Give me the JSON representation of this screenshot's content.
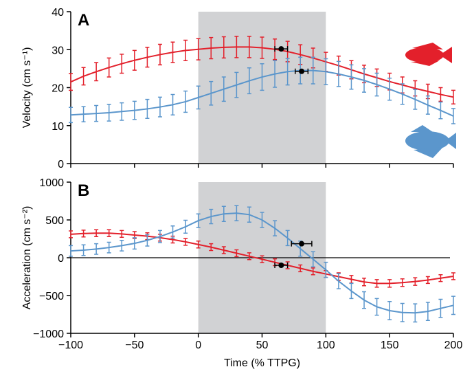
{
  "chart_data": [
    {
      "type": "line",
      "panel_label": "A",
      "ylabel": "Velocity (cm s⁻¹)",
      "x": [
        -100,
        -90,
        -80,
        -70,
        -60,
        -50,
        -40,
        -30,
        -20,
        -10,
        0,
        10,
        20,
        30,
        40,
        50,
        60,
        70,
        80,
        90,
        100,
        110,
        120,
        130,
        140,
        150,
        160,
        170,
        180,
        190,
        200
      ],
      "xlim": [
        -100,
        200
      ],
      "xticks": [
        -100,
        -50,
        0,
        50,
        100,
        150,
        200
      ],
      "ylim": [
        0,
        40
      ],
      "yticks": [
        0,
        10,
        20,
        30,
        40
      ],
      "shaded_region": [
        0,
        100
      ],
      "series": [
        {
          "color": "#e3202b",
          "values": [
            21.5,
            23,
            24.2,
            25.3,
            26.3,
            27.2,
            28,
            28.7,
            29.3,
            29.8,
            30.1,
            30.4,
            30.6,
            30.7,
            30.7,
            30.5,
            30.1,
            29.5,
            28.7,
            27.8,
            26.8,
            25.8,
            24.7,
            23.6,
            22.6,
            21.6,
            20.7,
            19.8,
            19,
            18.2,
            17.5
          ],
          "errors": [
            2.2,
            2.3,
            2.4,
            2.5,
            2.5,
            2.6,
            2.6,
            2.7,
            2.7,
            2.7,
            2.8,
            2.8,
            2.8,
            2.8,
            2.8,
            2.8,
            2.7,
            2.7,
            2.6,
            2.6,
            2.5,
            2.5,
            2.4,
            2.3,
            2.3,
            2.2,
            2.1,
            2,
            1.9,
            1.8,
            1.8
          ],
          "peak": {
            "x": 65,
            "y": 30.2,
            "x_error": 5
          }
        },
        {
          "color": "#5b96cc",
          "values": [
            12.8,
            13,
            13.2,
            13.4,
            13.7,
            14,
            14.4,
            14.9,
            15.5,
            16.3,
            17.4,
            18.5,
            19.6,
            20.7,
            21.8,
            22.8,
            23.6,
            24.2,
            24.5,
            24.5,
            24.2,
            23.6,
            22.8,
            21.9,
            20.8,
            19.6,
            18.3,
            16.9,
            15.4,
            14,
            12.5
          ],
          "errors": [
            2,
            2,
            2.1,
            2.2,
            2.3,
            2.4,
            2.5,
            2.6,
            2.7,
            2.8,
            3,
            3.1,
            3.2,
            3.3,
            3.4,
            3.5,
            3.5,
            3.5,
            3.5,
            3.5,
            3.4,
            3.3,
            3.2,
            3.1,
            3,
            2.9,
            2.7,
            2.6,
            2.4,
            2.2,
            2
          ],
          "peak": {
            "x": 81,
            "y": 24.3,
            "x_error": 5
          }
        }
      ]
    },
    {
      "type": "line",
      "panel_label": "B",
      "ylabel": "Acceleration (cm s⁻²)",
      "xlabel": "Time (% TTPG)",
      "x": [
        -100,
        -90,
        -80,
        -70,
        -60,
        -50,
        -40,
        -30,
        -20,
        -10,
        0,
        10,
        20,
        30,
        40,
        50,
        60,
        70,
        80,
        90,
        100,
        110,
        120,
        130,
        140,
        150,
        160,
        170,
        180,
        190,
        200
      ],
      "xlim": [
        -100,
        200
      ],
      "xticks": [
        {
          "value": -100,
          "label": "−100"
        },
        {
          "value": -50,
          "label": "−50"
        },
        0,
        50,
        100,
        150,
        200
      ],
      "ylim": [
        -1000,
        1000
      ],
      "yticks": [
        {
          "value": -1000,
          "label": "−1000"
        },
        {
          "value": -500,
          "label": "−500"
        },
        0,
        500,
        1000
      ],
      "shaded_region": [
        0,
        100
      ],
      "hline": 0,
      "series": [
        {
          "color": "#e3202b",
          "values": [
            310,
            320,
            325,
            325,
            315,
            300,
            285,
            265,
            240,
            210,
            175,
            140,
            100,
            60,
            20,
            -20,
            -60,
            -100,
            -140,
            -180,
            -215,
            -250,
            -285,
            -320,
            -340,
            -340,
            -330,
            -315,
            -295,
            -270,
            -245
          ],
          "errors": [
            45,
            45,
            45,
            45,
            45,
            45,
            45,
            45,
            45,
            45,
            45,
            45,
            45,
            45,
            45,
            45,
            45,
            45,
            45,
            45,
            45,
            50,
            50,
            50,
            50,
            50,
            50,
            50,
            45,
            45,
            45
          ],
          "peak": {
            "x": 65,
            "y": -100,
            "x_error": 5
          }
        },
        {
          "color": "#5b96cc",
          "values": [
            90,
            100,
            115,
            135,
            160,
            190,
            230,
            280,
            340,
            410,
            490,
            545,
            580,
            590,
            570,
            500,
            390,
            260,
            120,
            -20,
            -160,
            -310,
            -440,
            -560,
            -650,
            -700,
            -725,
            -730,
            -710,
            -670,
            -630
          ],
          "errors": [
            70,
            70,
            70,
            70,
            70,
            75,
            75,
            80,
            80,
            85,
            90,
            95,
            100,
            100,
            100,
            100,
            100,
            100,
            100,
            100,
            100,
            100,
            100,
            110,
            110,
            120,
            120,
            120,
            120,
            120,
            120
          ],
          "peak": {
            "x": 81,
            "y": 185,
            "x_error": 8
          }
        }
      ]
    }
  ]
}
